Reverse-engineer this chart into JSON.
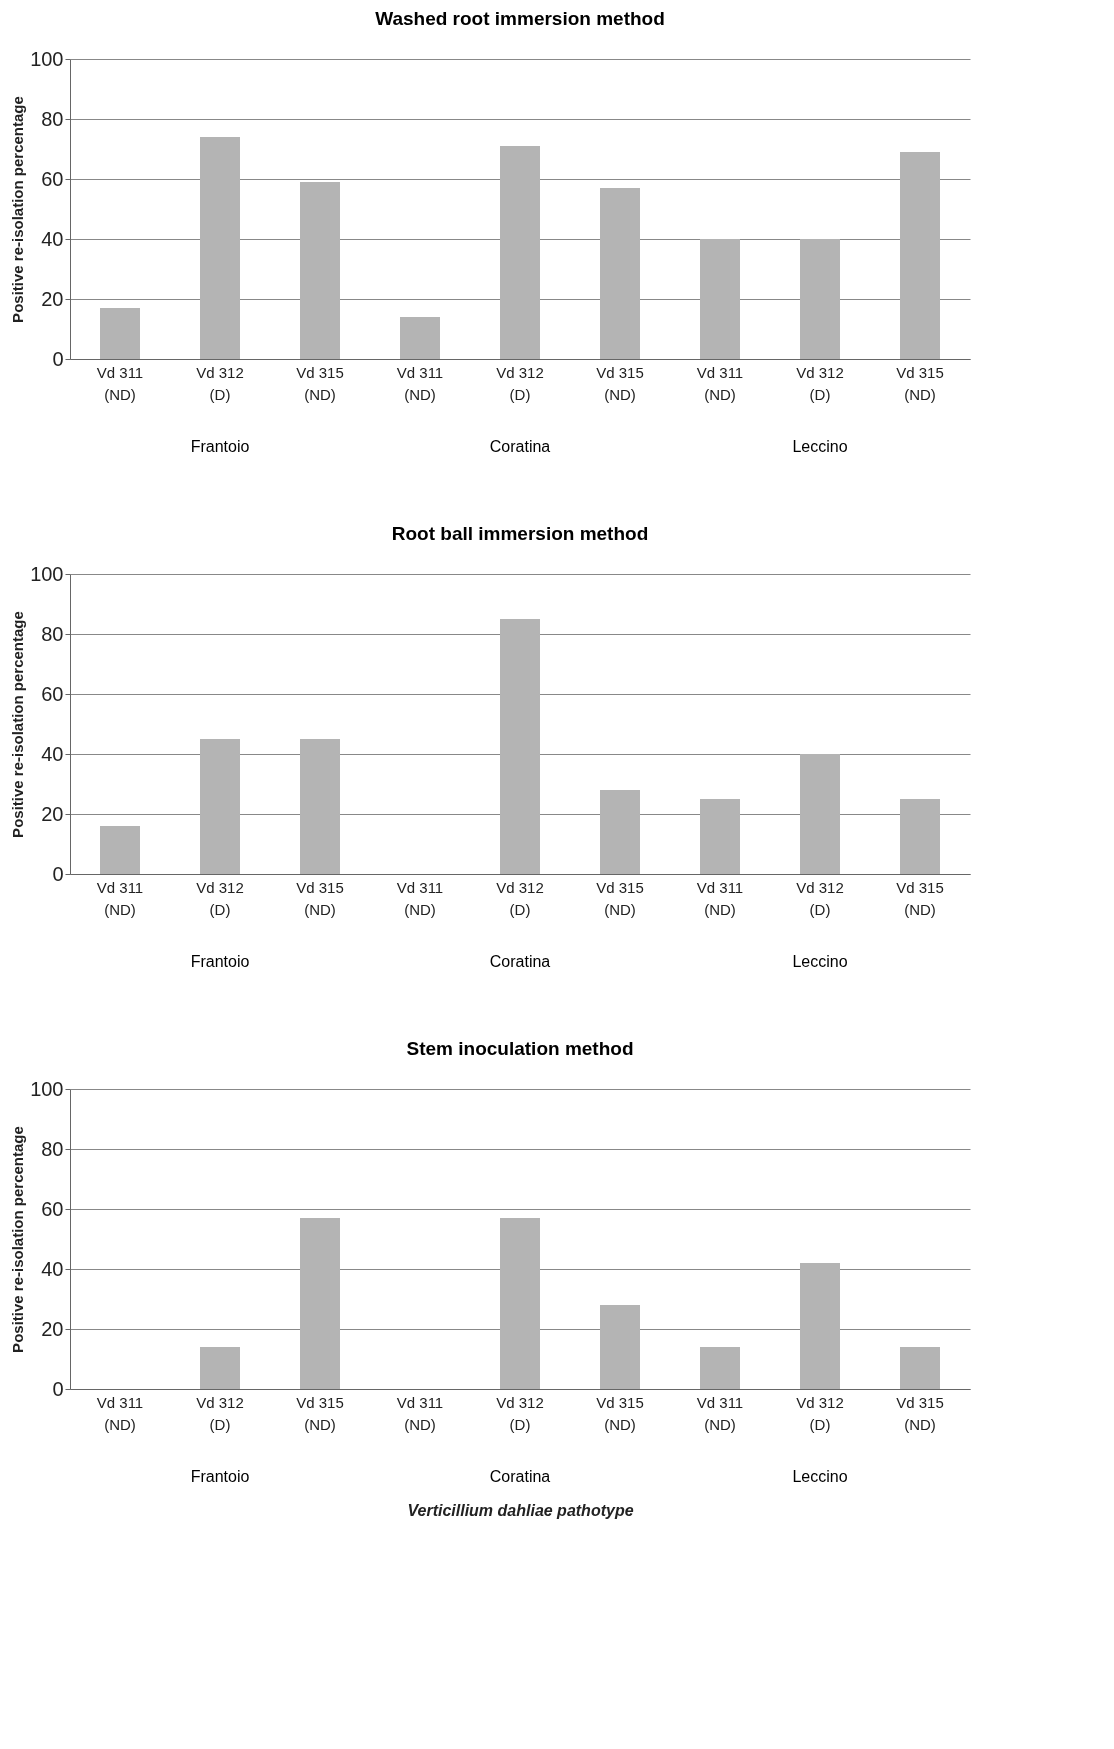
{
  "chart_data": [
    {
      "type": "bar",
      "title": "Washed root immersion method",
      "ylabel": "Positive re-isolation percentage",
      "categories": [
        "Vd 311\n(ND)",
        "Vd 312\n(D)",
        "Vd 315\n(ND)",
        "Vd 311\n(ND)",
        "Vd 312\n(D)",
        "Vd 315\n(ND)",
        "Vd 311\n(ND)",
        "Vd 312\n(D)",
        "Vd 315\n(ND)"
      ],
      "values": [
        17,
        74,
        59,
        14,
        71,
        57,
        40,
        40,
        69
      ],
      "color": "#b4b4b4",
      "ylim": [
        0,
        100
      ],
      "yticks": [
        0,
        20,
        40,
        60,
        80,
        100
      ],
      "grid": "y",
      "annotations": [
        "Frantoio",
        "Coratina",
        "Leccino"
      ]
    },
    {
      "type": "bar",
      "title": "Root ball immersion method",
      "ylabel": "Positive re-isolation percentage",
      "categories": [
        "Vd 311\n(ND)",
        "Vd 312\n(D)",
        "Vd 315\n(ND)",
        "Vd 311\n(ND)",
        "Vd 312\n(D)",
        "Vd 315\n(ND)",
        "Vd 311\n(ND)",
        "Vd 312\n(D)",
        "Vd 315\n(ND)"
      ],
      "values": [
        16,
        45,
        45,
        0,
        85,
        28,
        25,
        40,
        25
      ],
      "color": "#b4b4b4",
      "ylim": [
        0,
        100
      ],
      "yticks": [
        0,
        20,
        40,
        60,
        80,
        100
      ],
      "grid": "y",
      "annotations": [
        "Frantoio",
        "Coratina",
        "Leccino"
      ]
    },
    {
      "type": "bar",
      "title": "Stem inoculation method",
      "ylabel": "Positive re-isolation percentage",
      "xlabel": "Verticillium dahliae pathotype",
      "categories": [
        "Vd 311\n(ND)",
        "Vd 312\n(D)",
        "Vd 315\n(ND)",
        "Vd 311\n(ND)",
        "Vd 312\n(D)",
        "Vd 315\n(ND)",
        "Vd 311\n(ND)",
        "Vd 312\n(D)",
        "Vd 315\n(ND)"
      ],
      "values": [
        0,
        14,
        57,
        0,
        57,
        28,
        14,
        42,
        14
      ],
      "color": "#b4b4b4",
      "ylim": [
        0,
        100
      ],
      "yticks": [
        0,
        20,
        40,
        60,
        80,
        100
      ],
      "grid": "y",
      "annotations": [
        "Frantoio",
        "Coratina",
        "Leccino"
      ]
    }
  ]
}
